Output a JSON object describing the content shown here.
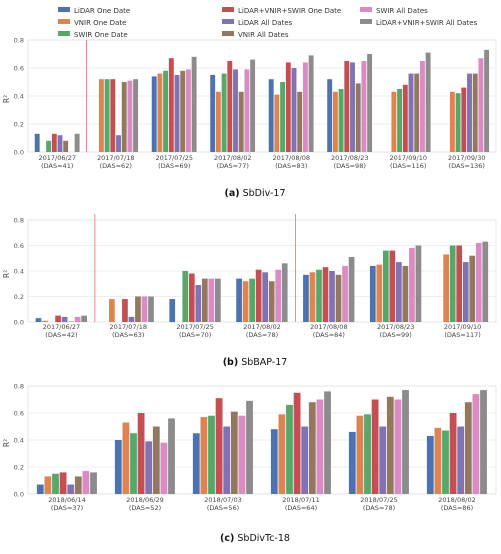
{
  "legend": {
    "items": [
      {
        "label": "LiDAR One Date",
        "color": "#4c72b0"
      },
      {
        "label": "VNIR One Date",
        "color": "#dd8452"
      },
      {
        "label": "SWIR  One Date",
        "color": "#55a868"
      },
      {
        "label": "LiDAR+VNIR+SWIR One Date",
        "color": "#c44e52"
      },
      {
        "label": "LiDAR All Dates",
        "color": "#8172b3"
      },
      {
        "label": "VNIR All Dates",
        "color": "#937860"
      },
      {
        "label": "SWIR All Dates",
        "color": "#da8bc3"
      },
      {
        "label": "LiDAR+VNIR+SWIR All Dates",
        "color": "#8c8c8c"
      }
    ]
  },
  "chart_data": [
    {
      "type": "bar",
      "caption_tag": "(a)",
      "caption_name": "SbDiv-17",
      "ylabel": "R²",
      "ylim": [
        0,
        0.8
      ],
      "yticks": [
        "0.0",
        "0.2",
        "0.4",
        "0.6",
        "0.8"
      ],
      "grid": true,
      "categories": [
        {
          "date": "2017/06/27",
          "das": "(DAS=41)"
        },
        {
          "date": "2017/07/18",
          "das": "(DAS=62)"
        },
        {
          "date": "2017/07/25",
          "das": "(DAS=69)"
        },
        {
          "date": "2017/08/02",
          "das": "(DAS=77)"
        },
        {
          "date": "2017/08/08",
          "das": "(DAS=83)"
        },
        {
          "date": "2017/08/23",
          "das": "(DAS=98)"
        },
        {
          "date": "2017/09/10",
          "das": "(DAS=116)"
        },
        {
          "date": "2017/09/30",
          "das": "(DAS=136)"
        }
      ],
      "separators_after": [
        0
      ],
      "series": [
        {
          "name": "LiDAR One Date",
          "values": [
            0.13,
            null,
            0.54,
            0.55,
            0.52,
            0.52,
            null,
            null
          ]
        },
        {
          "name": "VNIR One Date",
          "values": [
            null,
            0.52,
            0.56,
            0.43,
            0.41,
            0.43,
            0.43,
            0.43
          ]
        },
        {
          "name": "SWIR  One Date",
          "values": [
            0.08,
            0.52,
            0.58,
            0.56,
            0.5,
            0.45,
            0.45,
            0.42
          ]
        },
        {
          "name": "LiDAR+VNIR+SWIR One Date",
          "values": [
            0.13,
            0.52,
            0.67,
            0.65,
            0.64,
            0.65,
            0.48,
            0.46
          ]
        },
        {
          "name": "LiDAR All Dates",
          "values": [
            0.12,
            0.12,
            0.55,
            0.59,
            0.6,
            0.64,
            0.56,
            0.56
          ]
        },
        {
          "name": "VNIR All Dates",
          "values": [
            0.08,
            0.5,
            0.58,
            0.43,
            0.43,
            0.49,
            0.56,
            0.56
          ]
        },
        {
          "name": "SWIR All Dates",
          "values": [
            null,
            0.51,
            0.59,
            0.59,
            0.64,
            0.65,
            0.65,
            0.67
          ]
        },
        {
          "name": "LiDAR+VNIR+SWIR All Dates",
          "values": [
            0.13,
            0.52,
            0.68,
            0.66,
            0.69,
            0.7,
            0.71,
            0.73
          ]
        }
      ]
    },
    {
      "type": "bar",
      "caption_tag": "(b)",
      "caption_name": "SbBAP-17",
      "ylabel": "R²",
      "ylim": [
        0,
        0.8
      ],
      "yticks": [
        "0.0",
        "0.2",
        "0.4",
        "0.6",
        "0.8"
      ],
      "grid": true,
      "categories": [
        {
          "date": "2017/06/27",
          "das": "(DAS=42)"
        },
        {
          "date": "2017/07/18",
          "das": "(DAS=63)"
        },
        {
          "date": "2017/07/25",
          "das": "(DAS=70)"
        },
        {
          "date": "2017/08/02",
          "das": "(DAS=78)"
        },
        {
          "date": "2017/08/08",
          "das": "(DAS=84)"
        },
        {
          "date": "2017/08/23",
          "das": "(DAS=99)"
        },
        {
          "date": "2017/09/10",
          "das": "(DAS=117)"
        }
      ],
      "separators_after": [
        0,
        3
      ],
      "series": [
        {
          "name": "LiDAR One Date",
          "values": [
            0.03,
            null,
            0.18,
            0.34,
            0.37,
            0.44,
            null
          ]
        },
        {
          "name": "VNIR One Date",
          "values": [
            0.01,
            0.18,
            null,
            0.32,
            0.39,
            0.45,
            0.53
          ]
        },
        {
          "name": "SWIR  One Date",
          "values": [
            null,
            null,
            0.4,
            0.34,
            0.41,
            0.56,
            0.6
          ]
        },
        {
          "name": "LiDAR+VNIR+SWIR One Date",
          "values": [
            0.05,
            0.18,
            0.38,
            0.41,
            0.43,
            0.56,
            0.6
          ]
        },
        {
          "name": "LiDAR All Dates",
          "values": [
            0.04,
            0.04,
            0.29,
            0.39,
            0.4,
            0.47,
            0.47
          ]
        },
        {
          "name": "VNIR All Dates",
          "values": [
            0.0,
            0.2,
            0.34,
            0.32,
            0.37,
            0.44,
            0.52
          ]
        },
        {
          "name": "SWIR All Dates",
          "values": [
            0.04,
            0.2,
            0.34,
            0.41,
            0.44,
            0.58,
            0.62
          ]
        },
        {
          "name": "LiDAR+VNIR+SWIR All Dates",
          "values": [
            0.05,
            0.2,
            0.34,
            0.46,
            0.51,
            0.6,
            0.63
          ]
        }
      ]
    },
    {
      "type": "bar",
      "caption_tag": "(c)",
      "caption_name": "SbDivTc-18",
      "ylabel": "R²",
      "ylim": [
        0,
        0.8
      ],
      "yticks": [
        "0.0",
        "0.2",
        "0.4",
        "0.6",
        "0.8"
      ],
      "grid": true,
      "categories": [
        {
          "date": "2018/06/14",
          "das": "(DAS=37)"
        },
        {
          "date": "2018/06/29",
          "das": "(DAS=52)"
        },
        {
          "date": "2018/07/03",
          "das": "(DAS=56)"
        },
        {
          "date": "2018/07/11",
          "das": "(DAS=64)"
        },
        {
          "date": "2018/07/25",
          "das": "(DAS=78)"
        },
        {
          "date": "2018/08/02",
          "das": "(DAS=86)"
        }
      ],
      "separators_after": [],
      "series": [
        {
          "name": "LiDAR One Date",
          "values": [
            0.07,
            0.4,
            0.45,
            0.48,
            0.46,
            0.43
          ]
        },
        {
          "name": "VNIR One Date",
          "values": [
            0.13,
            0.53,
            0.57,
            0.59,
            0.58,
            0.49
          ]
        },
        {
          "name": "SWIR  One Date",
          "values": [
            0.15,
            0.45,
            0.58,
            0.66,
            0.59,
            0.47
          ]
        },
        {
          "name": "LiDAR+VNIR+SWIR One Date",
          "values": [
            0.16,
            0.6,
            0.71,
            0.75,
            0.7,
            0.6
          ]
        },
        {
          "name": "LiDAR All Dates",
          "values": [
            0.07,
            0.39,
            0.5,
            0.5,
            0.5,
            0.5
          ]
        },
        {
          "name": "VNIR All Dates",
          "values": [
            0.13,
            0.5,
            0.61,
            0.68,
            0.72,
            0.68
          ]
        },
        {
          "name": "SWIR All Dates",
          "values": [
            0.17,
            0.38,
            0.58,
            0.7,
            0.7,
            0.74
          ]
        },
        {
          "name": "LiDAR+VNIR+SWIR All Dates",
          "values": [
            0.16,
            0.56,
            0.69,
            0.76,
            0.77,
            0.77
          ]
        }
      ]
    }
  ]
}
